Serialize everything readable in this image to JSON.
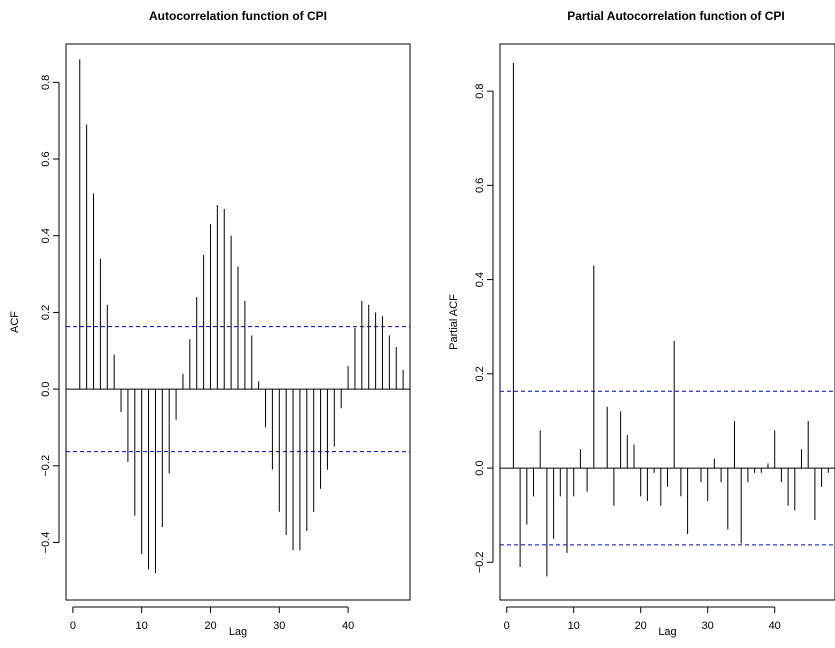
{
  "colors": {
    "bars": "#000000",
    "ci_lines": "#0000cc",
    "zero_line": "#000000"
  },
  "chart_data": [
    {
      "type": "bar",
      "title": "Autocorrelation function of CPI",
      "xlabel": "Lag",
      "ylabel": "ACF",
      "xlim": [
        -1,
        49
      ],
      "ylim": [
        -0.55,
        0.9
      ],
      "xticks": [
        "0",
        "10",
        "20",
        "30",
        "40"
      ],
      "yticks": [
        "−0.4",
        "−0.2",
        "0.0",
        "0.2",
        "0.4",
        "0.6",
        "0.8"
      ],
      "confidence_limits": [
        0.163,
        -0.163
      ],
      "x": [
        1,
        2,
        3,
        4,
        5,
        6,
        7,
        8,
        9,
        10,
        11,
        12,
        13,
        14,
        15,
        16,
        17,
        18,
        19,
        20,
        21,
        22,
        23,
        24,
        25,
        26,
        27,
        28,
        29,
        30,
        31,
        32,
        33,
        34,
        35,
        36,
        37,
        38,
        39,
        40,
        41,
        42,
        43,
        44,
        45,
        46,
        47,
        48
      ],
      "values": [
        0.86,
        0.69,
        0.51,
        0.34,
        0.22,
        0.09,
        -0.06,
        -0.19,
        -0.33,
        -0.43,
        -0.47,
        -0.48,
        -0.36,
        -0.22,
        -0.08,
        0.04,
        0.13,
        0.24,
        0.35,
        0.43,
        0.48,
        0.47,
        0.4,
        0.32,
        0.23,
        0.14,
        0.02,
        -0.1,
        -0.21,
        -0.32,
        -0.38,
        -0.42,
        -0.42,
        -0.37,
        -0.32,
        -0.26,
        -0.21,
        -0.15,
        -0.05,
        0.06,
        0.16,
        0.23,
        0.22,
        0.2,
        0.19,
        0.14,
        0.11,
        0.05
      ]
    },
    {
      "type": "bar",
      "title": "Partial Autocorrelation function of CPI",
      "xlabel": "Lag",
      "ylabel": "Partial ACF",
      "xlim": [
        -1,
        49
      ],
      "ylim": [
        -0.28,
        0.9
      ],
      "xticks": [
        "0",
        "10",
        "20",
        "30",
        "40"
      ],
      "yticks": [
        "−0.2",
        "0.0",
        "0.2",
        "0.4",
        "0.6",
        "0.8"
      ],
      "confidence_limits": [
        0.163,
        -0.163
      ],
      "x": [
        1,
        2,
        3,
        4,
        5,
        6,
        7,
        8,
        9,
        10,
        11,
        12,
        13,
        14,
        15,
        16,
        17,
        18,
        19,
        20,
        21,
        22,
        23,
        24,
        25,
        26,
        27,
        28,
        29,
        30,
        31,
        32,
        33,
        34,
        35,
        36,
        37,
        38,
        39,
        40,
        41,
        42,
        43,
        44,
        45,
        46,
        47,
        48
      ],
      "values": [
        0.86,
        -0.21,
        -0.12,
        -0.06,
        0.08,
        -0.23,
        -0.15,
        -0.06,
        -0.18,
        -0.06,
        0.04,
        -0.05,
        0.43,
        0.0,
        0.13,
        -0.08,
        0.12,
        0.07,
        0.05,
        -0.06,
        -0.07,
        -0.01,
        -0.08,
        -0.04,
        0.27,
        -0.06,
        -0.14,
        0.0,
        -0.03,
        -0.07,
        0.02,
        -0.03,
        -0.13,
        0.1,
        -0.16,
        -0.03,
        -0.01,
        -0.01,
        0.01,
        0.08,
        -0.03,
        -0.08,
        -0.09,
        0.04,
        0.1,
        -0.11,
        -0.04,
        -0.01
      ]
    }
  ]
}
